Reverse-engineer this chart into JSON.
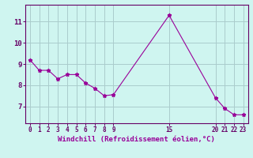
{
  "x": [
    0,
    1,
    2,
    3,
    4,
    5,
    6,
    7,
    8,
    9,
    15,
    20,
    21,
    22,
    23
  ],
  "y": [
    9.2,
    8.7,
    8.7,
    8.3,
    8.5,
    8.5,
    8.1,
    7.85,
    7.5,
    7.55,
    11.3,
    7.4,
    6.9,
    6.6,
    6.6
  ],
  "line_color": "#990099",
  "marker": "*",
  "marker_size": 3.5,
  "bg_color": "#cff5f0",
  "grid_color": "#aacccc",
  "xlabel": "Windchill (Refroidissement éolien,°C)",
  "xlabel_color": "#990099",
  "tick_color": "#990099",
  "spine_color": "#660066",
  "xlim": [
    -0.5,
    23.5
  ],
  "ylim": [
    6.2,
    11.8
  ],
  "xticks": [
    0,
    1,
    2,
    3,
    4,
    5,
    6,
    7,
    8,
    9,
    15,
    20,
    21,
    22,
    23
  ],
  "yticks": [
    7,
    8,
    9,
    10,
    11
  ],
  "figsize": [
    3.2,
    2.0
  ],
  "dpi": 100
}
